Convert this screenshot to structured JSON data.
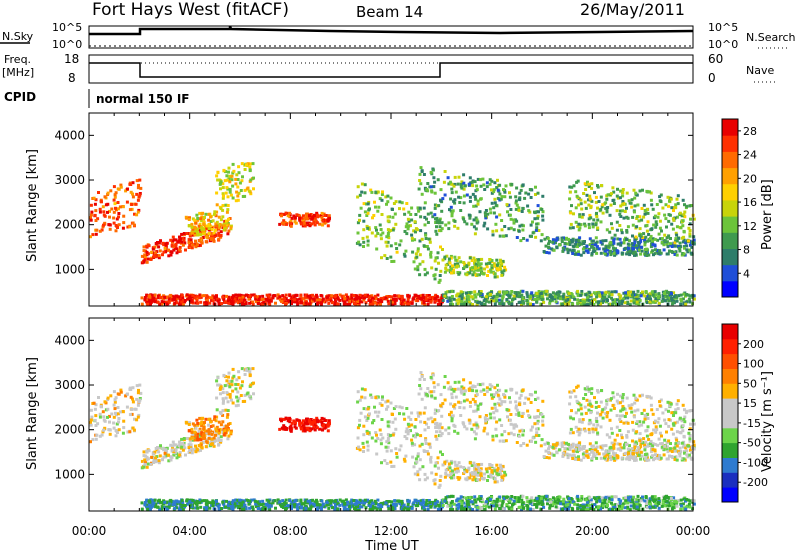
{
  "header": {
    "title": "Fort Hays West (fitACF)",
    "beam": "Beam 14",
    "date": "26/May/2011"
  },
  "params": {
    "nsky_label": "N.Sky",
    "nsearch_label": "N.Search",
    "freq_label_1": "Freq.",
    "freq_label_2": "[MHz]",
    "nave_label": "Nave",
    "cpid_label": "CPID",
    "cpid_value": "normal 150 IF",
    "noise_ticks": [
      "10^5",
      "10^0"
    ],
    "freq_ticks": [
      "18",
      "8"
    ],
    "nave_ticks": [
      "60",
      "0"
    ]
  },
  "chart_data": [
    {
      "type": "heatmap",
      "name": "power",
      "xlabel": "",
      "ylabel": "Slant Range [km]",
      "yticks": [
        1000,
        2000,
        3000,
        4000
      ],
      "ylim": [
        180,
        4500
      ],
      "xticks": [
        "00:00",
        "04:00",
        "08:00",
        "12:00",
        "16:00",
        "20:00",
        "00:00"
      ],
      "xlim_hours": [
        0,
        24
      ],
      "colorbar": {
        "label": "Power [dB]",
        "ticks": [
          4,
          8,
          12,
          16,
          20,
          24,
          28
        ],
        "range": [
          0,
          30
        ],
        "colors": [
          "#0000ff",
          "#1f4fd8",
          "#2e7d6a",
          "#3f9a4f",
          "#6cc43a",
          "#c8d40a",
          "#ffd000",
          "#ffa000",
          "#ff6a00",
          "#ff3000",
          "#e80000"
        ]
      }
    },
    {
      "type": "heatmap",
      "name": "velocity",
      "xlabel": "Time UT",
      "ylabel": "Slant Range [km]",
      "yticks": [
        1000,
        2000,
        3000,
        4000
      ],
      "ylim": [
        180,
        4500
      ],
      "xticks": [
        "00:00",
        "04:00",
        "08:00",
        "12:00",
        "16:00",
        "20:00",
        "00:00"
      ],
      "xlim_hours": [
        0,
        24
      ],
      "colorbar": {
        "label": "Velocity [m s⁻¹]",
        "ticks": [
          "200",
          "100",
          "50",
          "15",
          "-15",
          "-50",
          "-100",
          "-200"
        ],
        "colors": [
          "#0000ff",
          "#1a2fbf",
          "#2e7bd0",
          "#2fa42f",
          "#6cd44a",
          "#c8c8c8",
          "#c8c8c8",
          "#ffb000",
          "#ff8000",
          "#ff5000",
          "#ff2000",
          "#e80000"
        ]
      }
    }
  ]
}
